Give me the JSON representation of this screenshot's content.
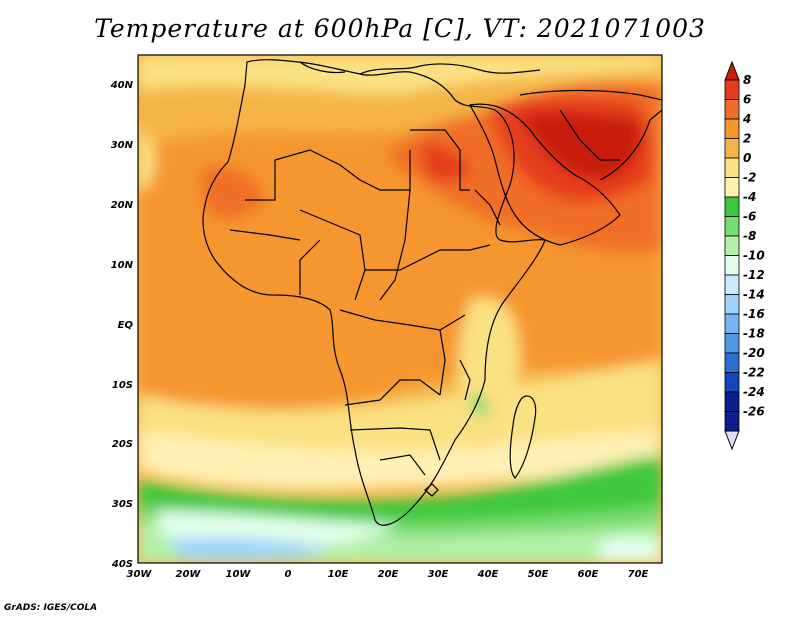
{
  "title": "Temperature at 600hPa [C], VT: 2021071003",
  "credit": "GrADS: IGES/COLA",
  "map": {
    "variable": "Temperature",
    "level": "600hPa",
    "units": "C",
    "valid_time": "2021071003",
    "lat_labels": [
      "40N",
      "30N",
      "20N",
      "10N",
      "EQ",
      "10S",
      "20S",
      "30S",
      "40S"
    ],
    "lon_labels": [
      "30W",
      "20W",
      "10W",
      "0",
      "10E",
      "20E",
      "30E",
      "40E",
      "50E",
      "60E",
      "70E"
    ]
  },
  "colorbar": {
    "labels": [
      "8",
      "6",
      "4",
      "2",
      "0",
      "-2",
      "-4",
      "-6",
      "-8",
      "-10",
      "-12",
      "-14",
      "-16",
      "-18",
      "-20",
      "-22",
      "-24",
      "-26"
    ],
    "colors": [
      "#c81e0f",
      "#e63c1e",
      "#f06e28",
      "#f5962d",
      "#f5b446",
      "#fae182",
      "#fff0b4",
      "#3cc83c",
      "#78dc6e",
      "#b4f0aa",
      "#e1ffeb",
      "#c8ebff",
      "#a0d2fa",
      "#78b4f0",
      "#5096e6",
      "#2d6ed2",
      "#1446be",
      "#0a1e8c",
      "#dcdcff"
    ]
  }
}
